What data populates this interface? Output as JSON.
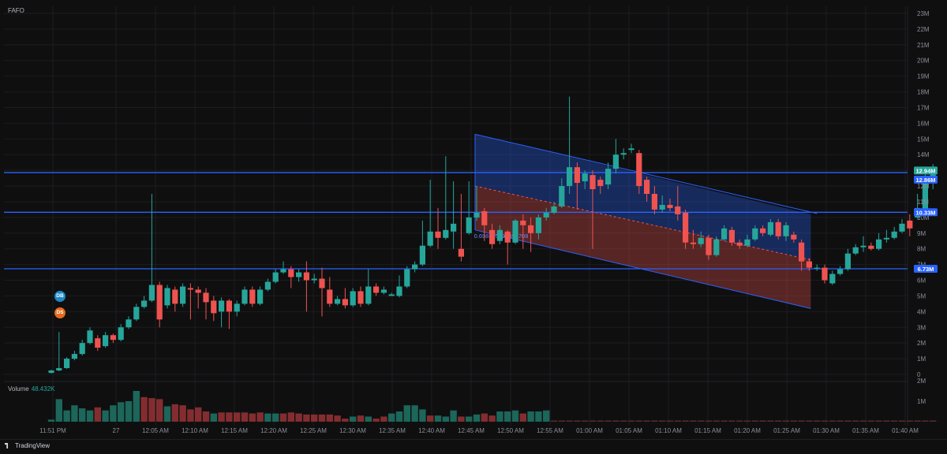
{
  "symbol": "FAFO",
  "volume_label": "Volume",
  "volume_value": "48.432K",
  "badges": {
    "db": "DB",
    "ds": "DS"
  },
  "brand": "TradingView",
  "colors": {
    "up": "#26a69a",
    "down": "#ef5350",
    "line": "#2962ff",
    "background": "#0f0f10",
    "grid": "#1c1d21"
  },
  "chart_data": {
    "type": "candlestick",
    "y_axis_ticks": [
      "0",
      "1M",
      "2M",
      "3M",
      "4M",
      "5M",
      "6M",
      "7M",
      "8M",
      "9M",
      "10M",
      "11M",
      "12M",
      "13M",
      "14M",
      "15M",
      "16M",
      "17M",
      "18M",
      "19M",
      "20M",
      "21M",
      "22M",
      "23M"
    ],
    "volume_axis_ticks": [
      "1M",
      "2M"
    ],
    "x_axis_labels": [
      "11:51 PM",
      "27",
      "12:05 AM",
      "12:10 AM",
      "12:15 AM",
      "12:20 AM",
      "12:25 AM",
      "12:30 AM",
      "12:35 AM",
      "12:40 AM",
      "12:45 AM",
      "12:50 AM",
      "12:55 AM",
      "01:00 AM",
      "01:05 AM",
      "01:10 AM",
      "01:15 AM",
      "01:20 AM",
      "01:25 AM",
      "01:30 AM",
      "01:35 AM",
      "01:40 AM"
    ],
    "ylim": [
      0,
      23000000
    ],
    "horizontal_levels": [
      {
        "label": "12.94M",
        "value": 12940000,
        "color": "#26a69a"
      },
      {
        "label": "12.86M",
        "value": 12860000,
        "color": "#2962ff"
      },
      {
        "label": "10.33M",
        "value": 10330000,
        "color": "#2962ff"
      },
      {
        "label": "6.73M",
        "value": 6730000,
        "color": "#2962ff"
      }
    ],
    "channel": {
      "start_index": 55,
      "end_index": 98,
      "upper": [
        15300000,
        10200000
      ],
      "mid": [
        12000000,
        7300000
      ],
      "lower": [
        9200000,
        4200000
      ],
      "label": "0.698820790493708"
    },
    "candles": [
      [
        0.1,
        0.25,
        0.05,
        0.3
      ],
      [
        0.25,
        0.4,
        0.2,
        2.7
      ],
      [
        0.4,
        1.0,
        0.35,
        1.1
      ],
      [
        1.0,
        1.3,
        0.9,
        1.5
      ],
      [
        1.3,
        2.0,
        1.2,
        2.2
      ],
      [
        2.0,
        2.8,
        1.9,
        3.0
      ],
      [
        2.3,
        1.7,
        1.5,
        2.5
      ],
      [
        1.8,
        2.5,
        1.7,
        2.7
      ],
      [
        2.5,
        2.2,
        2.0,
        2.6
      ],
      [
        2.2,
        3.0,
        2.1,
        3.2
      ],
      [
        3.0,
        3.5,
        2.9,
        3.7
      ],
      [
        3.5,
        4.3,
        3.4,
        4.5
      ],
      [
        4.3,
        4.7,
        4.2,
        5.0
      ],
      [
        4.7,
        5.7,
        4.6,
        11.5
      ],
      [
        5.7,
        3.5,
        3.0,
        5.9
      ],
      [
        4.4,
        5.5,
        4.2,
        5.7
      ],
      [
        5.4,
        4.5,
        4.0,
        5.6
      ],
      [
        4.5,
        5.6,
        4.3,
        5.8
      ],
      [
        5.5,
        5.4,
        3.5,
        5.8
      ],
      [
        5.4,
        5.2,
        4.2,
        5.6
      ],
      [
        5.2,
        4.6,
        3.5,
        5.5
      ],
      [
        4.7,
        3.9,
        3.4,
        5.0
      ],
      [
        4.0,
        4.7,
        3.0,
        4.9
      ],
      [
        4.7,
        4.0,
        2.9,
        4.8
      ],
      [
        4.0,
        4.5,
        3.7,
        4.7
      ],
      [
        4.5,
        5.4,
        4.4,
        5.6
      ],
      [
        5.4,
        4.5,
        4.3,
        5.6
      ],
      [
        4.5,
        5.4,
        4.4,
        5.6
      ],
      [
        5.4,
        5.9,
        5.3,
        6.1
      ],
      [
        5.9,
        6.5,
        5.8,
        6.7
      ],
      [
        6.5,
        6.7,
        6.4,
        7.2
      ],
      [
        6.7,
        6.2,
        5.5,
        6.9
      ],
      [
        6.2,
        6.5,
        5.9,
        6.7
      ],
      [
        6.5,
        6.0,
        4.0,
        7.2
      ],
      [
        6.0,
        6.1,
        5.8,
        6.4
      ],
      [
        6.1,
        5.5,
        3.7,
        6.8
      ],
      [
        5.4,
        4.5,
        4.3,
        6.2
      ],
      [
        4.5,
        4.8,
        4.4,
        5.0
      ],
      [
        4.8,
        4.4,
        4.2,
        5.5
      ],
      [
        4.4,
        5.3,
        4.3,
        5.5
      ],
      [
        5.3,
        4.5,
        4.3,
        5.6
      ],
      [
        4.5,
        5.6,
        4.4,
        6.7
      ],
      [
        5.6,
        5.2,
        5.0,
        5.8
      ],
      [
        5.2,
        5.4,
        5.1,
        5.6
      ],
      [
        5.0,
        5.1,
        5.0,
        5.2
      ],
      [
        5.0,
        5.6,
        4.9,
        6.3
      ],
      [
        5.6,
        6.7,
        5.5,
        6.9
      ],
      [
        6.7,
        7.0,
        6.5,
        7.2
      ],
      [
        7.0,
        8.2,
        6.9,
        9.8
      ],
      [
        8.2,
        9.1,
        8.1,
        12.4
      ],
      [
        9.1,
        8.7,
        8.0,
        10.6
      ],
      [
        8.7,
        9.2,
        8.6,
        13.9
      ],
      [
        9.1,
        9.6,
        8.0,
        12.3
      ],
      [
        8.0,
        7.5,
        7.2,
        11.5
      ],
      [
        9.0,
        10.0,
        8.9,
        12.3
      ],
      [
        10.0,
        10.3,
        9.8,
        12.0
      ],
      [
        10.4,
        9.5,
        8.5,
        10.6
      ],
      [
        9.2,
        8.3,
        8.0,
        9.6
      ],
      [
        8.5,
        9.2,
        8.3,
        9.5
      ],
      [
        9.1,
        8.4,
        7.0,
        9.2
      ],
      [
        8.4,
        9.8,
        8.3,
        9.9
      ],
      [
        9.8,
        9.5,
        8.0,
        10.2
      ],
      [
        9.5,
        9.0,
        7.8,
        10.0
      ],
      [
        9.0,
        10.0,
        8.6,
        10.2
      ],
      [
        10.0,
        10.3,
        9.8,
        10.6
      ],
      [
        10.3,
        10.7,
        10.2,
        11.0
      ],
      [
        10.7,
        12.0,
        10.6,
        12.5
      ],
      [
        12.0,
        13.2,
        11.5,
        17.7
      ],
      [
        13.2,
        12.2,
        10.5,
        13.5
      ],
      [
        12.3,
        12.8,
        11.8,
        13.0
      ],
      [
        12.7,
        11.8,
        8.0,
        13.0
      ],
      [
        12.4,
        12.0,
        11.5,
        12.6
      ],
      [
        12.1,
        13.1,
        11.8,
        13.5
      ],
      [
        13.1,
        14.0,
        12.8,
        15.0
      ],
      [
        14.0,
        14.1,
        13.7,
        14.4
      ],
      [
        14.3,
        14.4,
        14.1,
        14.7
      ],
      [
        14.1,
        12.0,
        11.5,
        14.3
      ],
      [
        12.4,
        11.5,
        11.0,
        12.6
      ],
      [
        11.5,
        10.5,
        10.2,
        12.0
      ],
      [
        10.5,
        10.8,
        10.3,
        11.4
      ],
      [
        10.8,
        10.6,
        10.4,
        11.2
      ],
      [
        10.7,
        10.2,
        9.8,
        12.0
      ],
      [
        10.3,
        8.4,
        8.0,
        10.5
      ],
      [
        8.4,
        8.3,
        8.0,
        9.2
      ],
      [
        8.3,
        8.7,
        8.1,
        9.1
      ],
      [
        8.7,
        7.6,
        7.3,
        8.9
      ],
      [
        7.6,
        8.6,
        7.5,
        8.8
      ],
      [
        8.6,
        9.3,
        8.5,
        9.5
      ],
      [
        9.2,
        8.4,
        8.2,
        9.4
      ],
      [
        8.4,
        8.2,
        8.0,
        8.6
      ],
      [
        8.2,
        8.6,
        8.1,
        8.9
      ],
      [
        8.6,
        9.3,
        8.5,
        9.5
      ],
      [
        9.3,
        9.0,
        8.8,
        9.5
      ],
      [
        8.9,
        9.7,
        8.8,
        9.9
      ],
      [
        9.7,
        8.8,
        8.6,
        9.9
      ],
      [
        8.8,
        9.5,
        8.5,
        9.7
      ],
      [
        8.9,
        8.6,
        8.4,
        9.1
      ],
      [
        8.4,
        7.2,
        6.6,
        8.6
      ],
      [
        7.2,
        6.8,
        6.6,
        7.4
      ],
      [
        6.8,
        6.8,
        6.6,
        7.0
      ],
      [
        6.8,
        6.0,
        5.8,
        7.0
      ],
      [
        5.8,
        6.4,
        5.7,
        6.6
      ],
      [
        6.4,
        6.7,
        6.3,
        6.9
      ],
      [
        6.7,
        7.7,
        6.6,
        8.0
      ],
      [
        7.7,
        8.1,
        7.6,
        8.3
      ],
      [
        8.1,
        8.2,
        7.8,
        8.8
      ],
      [
        8.2,
        8.0,
        7.9,
        8.4
      ],
      [
        8.0,
        8.6,
        7.9,
        9.0
      ],
      [
        8.6,
        8.7,
        8.4,
        9.2
      ],
      [
        8.7,
        9.1,
        8.6,
        9.4
      ],
      [
        9.1,
        9.6,
        9.0,
        9.9
      ],
      [
        9.8,
        9.3,
        8.8,
        10.2
      ],
      [
        10.0,
        10.6,
        9.9,
        11.5
      ],
      [
        10.5,
        12.6,
        10.4,
        12.8
      ],
      [
        12.6,
        12.9,
        11.8,
        13.4
      ]
    ],
    "volumes": [
      [
        0.1,
        1
      ],
      [
        1.1,
        1
      ],
      [
        0.55,
        1
      ],
      [
        0.8,
        1
      ],
      [
        0.65,
        1
      ],
      [
        0.55,
        1
      ],
      [
        0.7,
        0
      ],
      [
        0.55,
        1
      ],
      [
        0.8,
        1
      ],
      [
        0.95,
        1
      ],
      [
        1.0,
        1
      ],
      [
        1.5,
        1
      ],
      [
        1.2,
        0
      ],
      [
        1.15,
        0
      ],
      [
        1.1,
        0
      ],
      [
        0.75,
        1
      ],
      [
        0.85,
        0
      ],
      [
        0.8,
        0
      ],
      [
        0.6,
        0
      ],
      [
        0.7,
        0
      ],
      [
        0.5,
        0
      ],
      [
        0.4,
        1
      ],
      [
        0.45,
        0
      ],
      [
        0.45,
        0
      ],
      [
        0.45,
        0
      ],
      [
        0.45,
        0
      ],
      [
        0.4,
        0
      ],
      [
        0.45,
        0
      ],
      [
        0.4,
        1
      ],
      [
        0.4,
        1
      ],
      [
        0.4,
        0
      ],
      [
        0.45,
        0
      ],
      [
        0.4,
        0
      ],
      [
        0.35,
        0
      ],
      [
        0.35,
        0
      ],
      [
        0.35,
        0
      ],
      [
        0.35,
        0
      ],
      [
        0.3,
        0
      ],
      [
        0.15,
        0
      ],
      [
        0.25,
        1
      ],
      [
        0.3,
        0
      ],
      [
        0.25,
        1
      ],
      [
        0.15,
        0
      ],
      [
        0.25,
        0
      ],
      [
        0.4,
        1
      ],
      [
        0.5,
        1
      ],
      [
        0.8,
        1
      ],
      [
        0.8,
        1
      ],
      [
        0.6,
        1
      ],
      [
        0.3,
        0
      ],
      [
        0.3,
        1
      ],
      [
        0.25,
        1
      ],
      [
        0.55,
        1
      ],
      [
        0.25,
        0
      ],
      [
        0.25,
        1
      ],
      [
        0.35,
        1
      ],
      [
        0.4,
        0
      ],
      [
        0.3,
        0
      ],
      [
        0.5,
        1
      ],
      [
        0.5,
        1
      ],
      [
        0.55,
        1
      ],
      [
        0.4,
        0
      ],
      [
        0.5,
        1
      ],
      [
        0.5,
        1
      ],
      [
        0.55,
        1
      ]
    ]
  }
}
